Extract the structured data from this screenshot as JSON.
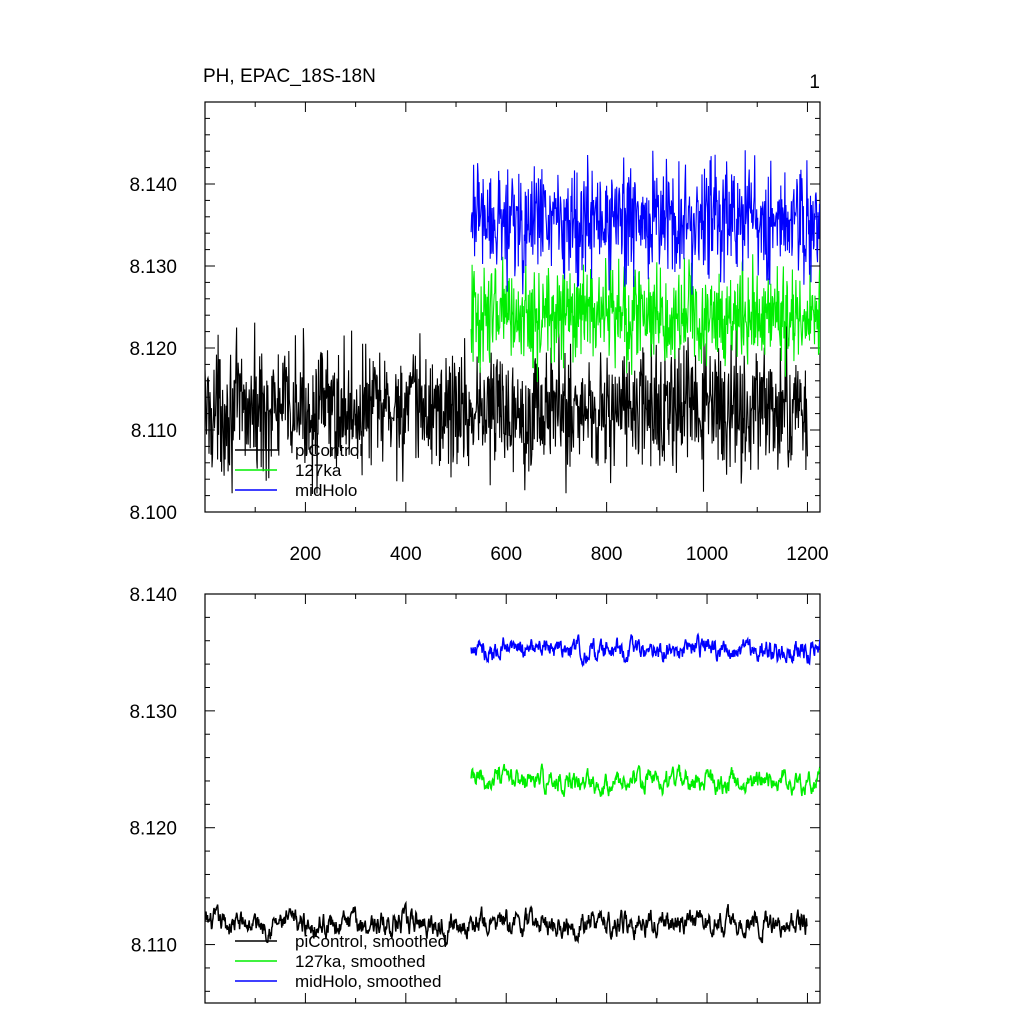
{
  "figure": {
    "title_left": "PH, EPAC_18S-18N",
    "title_right": "1"
  },
  "chart_data": [
    {
      "type": "line",
      "panel": "top",
      "title": "PH, EPAC_18S-18N",
      "xlim": [
        0,
        1225
      ],
      "ylim": [
        8.1,
        8.15
      ],
      "x_ticks": [
        200,
        400,
        600,
        800,
        1000,
        1200
      ],
      "x_tick_labels": [
        "200",
        "400",
        "600",
        "800",
        "1000",
        "1200"
      ],
      "y_ticks": [
        8.1,
        8.11,
        8.12,
        8.13,
        8.14
      ],
      "y_tick_labels": [
        "8.100",
        "8.110",
        "8.120",
        "8.130",
        "8.140"
      ],
      "legend_position": "bottom-left",
      "series": [
        {
          "name": "piControl",
          "color": "#000000",
          "x_range": [
            0,
            1200
          ],
          "mean": 8.1125,
          "amplitude": 0.0115,
          "min": 8.1008,
          "max": 8.1245
        },
        {
          "name": "127ka",
          "color": "#00ee00",
          "x_range": [
            530,
            1225
          ],
          "mean": 8.124,
          "amplitude": 0.009,
          "min": 8.1155,
          "max": 8.1325
        },
        {
          "name": "midHolo",
          "color": "#0000ff",
          "x_range": [
            530,
            1225
          ],
          "mean": 8.1355,
          "amplitude": 0.0105,
          "min": 8.1265,
          "max": 8.1455
        }
      ]
    },
    {
      "type": "line",
      "panel": "bottom",
      "title": "",
      "xlim": [
        0,
        1225
      ],
      "ylim": [
        8.105,
        8.14
      ],
      "x_ticks": [
        200,
        400,
        600,
        800,
        1000,
        1200
      ],
      "y_ticks": [
        8.11,
        8.12,
        8.13,
        8.14
      ],
      "y_tick_labels": [
        "8.110",
        "8.120",
        "8.130",
        "8.140"
      ],
      "legend_position": "bottom-left",
      "series": [
        {
          "name": "piControl, smoothed",
          "color": "#000000",
          "x_range": [
            0,
            1200
          ],
          "mean": 8.1118,
          "amplitude": 0.0042,
          "min": 8.1072,
          "max": 8.1172
        },
        {
          "name": "127ka, smoothed",
          "color": "#00ee00",
          "x_range": [
            530,
            1225
          ],
          "mean": 8.124,
          "amplitude": 0.0038,
          "min": 8.1198,
          "max": 8.1284
        },
        {
          "name": "midHolo, smoothed",
          "color": "#0000ff",
          "x_range": [
            530,
            1225
          ],
          "mean": 8.1352,
          "amplitude": 0.0038,
          "min": 8.1313,
          "max": 8.1397
        }
      ]
    }
  ]
}
